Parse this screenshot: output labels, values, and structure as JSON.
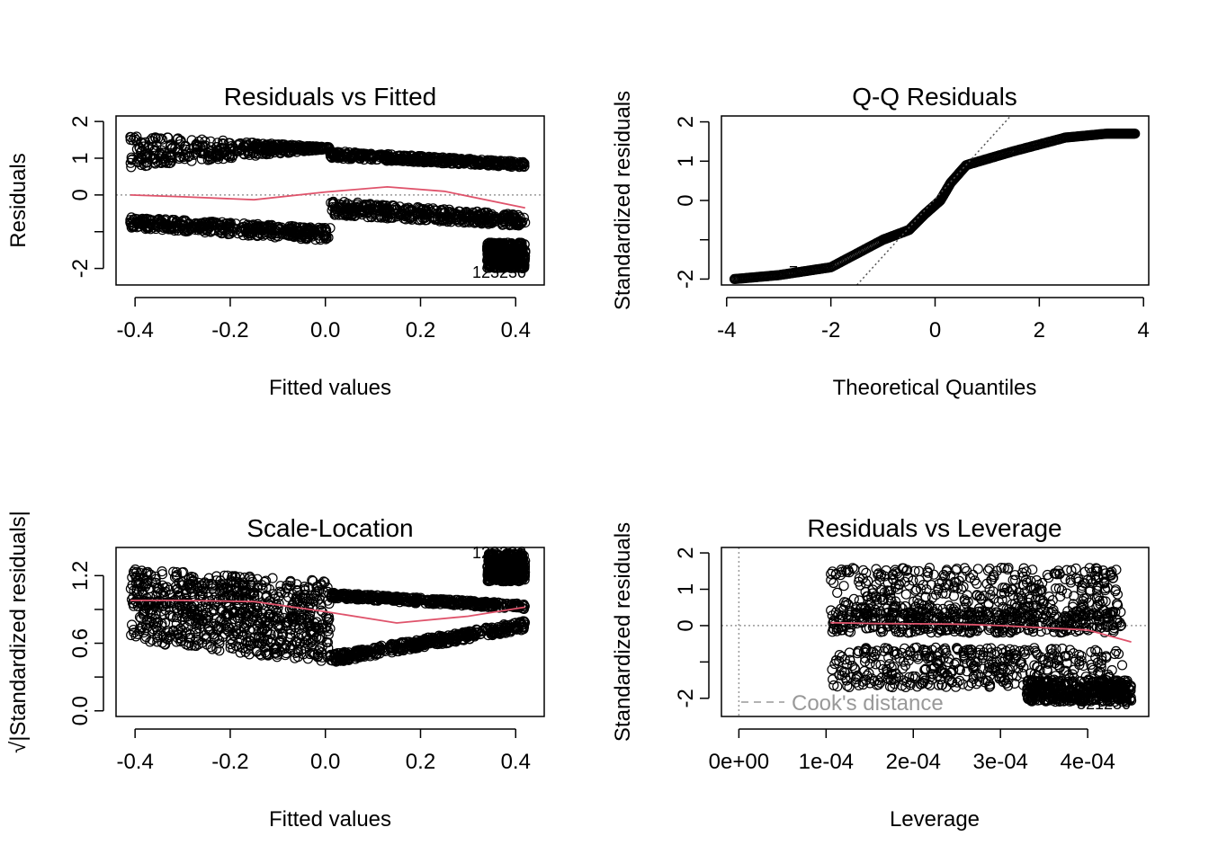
{
  "colors": {
    "points": "#000000",
    "smooth_line": "#DF536B",
    "reference_line": "#999999",
    "axis": "#000000"
  },
  "chart_data": [
    {
      "id": "rvf",
      "type": "scatter",
      "title": "Residuals vs Fitted",
      "xlabel": "Fitted values",
      "ylabel": "Residuals",
      "xlim": [
        -0.44,
        0.46
      ],
      "ylim": [
        -2.45,
        2.15
      ],
      "xticks": [
        -0.4,
        -0.2,
        0.0,
        0.2,
        0.4
      ],
      "xtick_labels": [
        "-0.4",
        "-0.2",
        "0.0",
        "0.2",
        "0.4"
      ],
      "yticks": [
        -2,
        -1,
        0,
        1,
        2
      ],
      "ytick_labels": [
        "-2",
        "",
        "0",
        "1",
        "2"
      ],
      "reference_y": 0,
      "point_bands": [
        {
          "x_from": -0.41,
          "x_to": 0.01,
          "y_from": 0.75,
          "y_to": 1.25,
          "y_top_from": 1.65,
          "y_top_to": 1.3
        },
        {
          "x_from": -0.41,
          "x_to": 0.01,
          "y_from": -0.9,
          "y_to": -1.25,
          "y_top_from": -0.6,
          "y_top_to": -0.9
        },
        {
          "x_from": 0.01,
          "x_to": 0.42,
          "y_from": 1.0,
          "y_to": 0.75,
          "y_top_from": 1.2,
          "y_top_to": 0.9
        },
        {
          "x_from": 0.01,
          "x_to": 0.42,
          "y_from": -0.55,
          "y_to": -0.85,
          "y_top_from": -0.15,
          "y_top_to": -0.55
        },
        {
          "x_from": 0.34,
          "x_to": 0.42,
          "y_from": -2.0,
          "y_to": -2.0,
          "y_top_from": -1.3,
          "y_top_to": -1.3
        }
      ],
      "smooth": {
        "x": [
          -0.41,
          -0.3,
          -0.15,
          0.0,
          0.13,
          0.25,
          0.42
        ],
        "y": [
          0.0,
          -0.05,
          -0.13,
          0.08,
          0.22,
          0.1,
          -0.35
        ]
      },
      "point_labels": [
        "12",
        "32",
        "30"
      ]
    },
    {
      "id": "qq",
      "type": "scatter",
      "title": "Q-Q Residuals",
      "xlabel": "Theoretical Quantiles",
      "ylabel": "Standardized residuals",
      "xlim": [
        -4.1,
        4.1
      ],
      "ylim": [
        -2.15,
        2.15
      ],
      "xticks": [
        -4,
        -2,
        0,
        2,
        4
      ],
      "xtick_labels": [
        "-4",
        "-2",
        "0",
        "2",
        "4"
      ],
      "yticks": [
        -2,
        -1,
        0,
        1,
        2
      ],
      "ytick_labels": [
        "-2",
        "",
        "0",
        "1",
        "2"
      ],
      "reference_line": {
        "x": [
          -1.5,
          1.45
        ],
        "y": [
          -2.15,
          2.15
        ]
      },
      "curve": {
        "x": [
          -3.85,
          -3.0,
          -2.0,
          -1.0,
          -0.5,
          -0.2,
          0.1,
          0.3,
          0.6,
          1.5,
          2.5,
          3.3,
          3.85
        ],
        "y": [
          -2.0,
          -1.9,
          -1.7,
          -1.0,
          -0.75,
          -0.35,
          0.0,
          0.45,
          0.9,
          1.25,
          1.6,
          1.7,
          1.7
        ]
      },
      "point_labels": [
        "7"
      ]
    },
    {
      "id": "sl",
      "type": "scatter",
      "title": "Scale-Location",
      "xlabel": "Fitted values",
      "ylabel": "√|Standardized residuals|",
      "xlim": [
        -0.44,
        0.46
      ],
      "ylim": [
        -0.05,
        1.45
      ],
      "xticks": [
        -0.4,
        -0.2,
        0.0,
        0.2,
        0.4
      ],
      "xtick_labels": [
        "-0.4",
        "-0.2",
        "0.0",
        "0.2",
        "0.4"
      ],
      "yticks": [
        0.0,
        0.3,
        0.6,
        0.9,
        1.2
      ],
      "ytick_labels": [
        "0.0",
        "",
        "0.6",
        "",
        "1.2"
      ],
      "point_bands": [
        {
          "x_from": -0.41,
          "x_to": 0.01,
          "y_from": 0.95,
          "y_to": 0.72,
          "y_top_from": 1.26,
          "y_top_to": 1.15
        },
        {
          "x_from": -0.41,
          "x_to": 0.01,
          "y_from": 0.62,
          "y_to": 0.42,
          "y_top_from": 0.98,
          "y_top_to": 0.82
        },
        {
          "x_from": 0.01,
          "x_to": 0.42,
          "y_from": 1.0,
          "y_to": 0.9,
          "y_top_from": 1.05,
          "y_top_to": 0.95
        },
        {
          "x_from": 0.01,
          "x_to": 0.42,
          "y_from": 0.42,
          "y_to": 0.72,
          "y_top_from": 0.5,
          "y_top_to": 0.8
        },
        {
          "x_from": 0.34,
          "x_to": 0.42,
          "y_from": 1.15,
          "y_to": 1.15,
          "y_top_from": 1.4,
          "y_top_to": 1.4
        }
      ],
      "smooth": {
        "x": [
          -0.41,
          -0.3,
          -0.15,
          0.0,
          0.15,
          0.3,
          0.42
        ],
        "y": [
          0.98,
          0.98,
          0.97,
          0.88,
          0.78,
          0.84,
          0.92
        ]
      },
      "point_labels": [
        "12",
        "32",
        "30"
      ]
    },
    {
      "id": "rvl",
      "type": "scatter",
      "title": "Residuals vs Leverage",
      "xlabel": "Leverage",
      "ylabel": "Standardized residuals",
      "xlim": [
        -2e-05,
        0.00047
      ],
      "ylim": [
        -2.5,
        2.15
      ],
      "xticks": [
        0,
        0.0001,
        0.0002,
        0.0003,
        0.0004
      ],
      "xtick_labels": [
        "0e+00",
        "1e-04",
        "2e-04",
        "3e-04",
        "4e-04"
      ],
      "yticks": [
        -2,
        -1,
        0,
        1,
        2
      ],
      "ytick_labels": [
        "-2",
        "",
        "0",
        "1",
        "2"
      ],
      "reference_y": 0,
      "reference_x": 0,
      "legend": {
        "label": "Cook's distance",
        "position": "bottom-left"
      },
      "smooth": {
        "x": [
          0.000105,
          0.00015,
          0.0002,
          0.00025,
          0.0003,
          0.00035,
          0.0004,
          0.00045
        ],
        "y": [
          0.08,
          0.06,
          0.05,
          0.04,
          0.0,
          -0.06,
          -0.12,
          -0.45
        ]
      },
      "point_labels": [
        "32",
        "12",
        "30"
      ]
    }
  ]
}
